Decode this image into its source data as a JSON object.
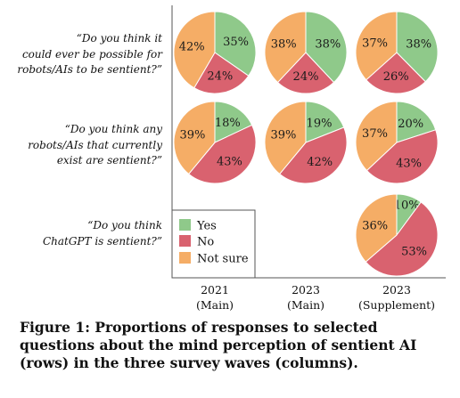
{
  "chart_data": {
    "type": "pie",
    "series": [
      {
        "name": "Yes",
        "color": "#8fc98a"
      },
      {
        "name": "No",
        "color": "#d9626f"
      },
      {
        "name": "Not sure",
        "color": "#f5ad66"
      }
    ],
    "columns": [
      {
        "line1": "2021",
        "line2": "(Main)"
      },
      {
        "line1": "2023",
        "line2": "(Main)"
      },
      {
        "line1": "2023",
        "line2": "(Supplement)"
      }
    ],
    "questions": [
      [
        "“Do you think it",
        "could ever be possible for",
        "robots/AIs to be sentient?”"
      ],
      [
        "“Do you think any",
        "robots/AIs that currently",
        "exist are sentient?”"
      ],
      [
        "“Do you think",
        "ChatGPT is sentient?”"
      ]
    ],
    "pies": [
      {
        "row": 0,
        "col": 0,
        "values": [
          35,
          24,
          42
        ],
        "labels": [
          "35%",
          "24%",
          "42%"
        ]
      },
      {
        "row": 0,
        "col": 1,
        "values": [
          38,
          24,
          38
        ],
        "labels": [
          "38%",
          "24%",
          "38%"
        ]
      },
      {
        "row": 0,
        "col": 2,
        "values": [
          38,
          26,
          37
        ],
        "labels": [
          "38%",
          "26%",
          "37%"
        ]
      },
      {
        "row": 1,
        "col": 0,
        "values": [
          18,
          43,
          39
        ],
        "labels": [
          "18%",
          "43%",
          "39%"
        ]
      },
      {
        "row": 1,
        "col": 1,
        "values": [
          19,
          42,
          39
        ],
        "labels": [
          "19%",
          "42%",
          "39%"
        ]
      },
      {
        "row": 1,
        "col": 2,
        "values": [
          20,
          43,
          37
        ],
        "labels": [
          "20%",
          "43%",
          "37%"
        ]
      },
      {
        "row": 2,
        "col": 2,
        "values": [
          10,
          53,
          36
        ],
        "labels": [
          "10%",
          "53%",
          "36%"
        ]
      }
    ],
    "legend_position": "inside-bottom-left"
  },
  "caption": "Figure 1: Proportions of responses to selected questions about the mind perception of sentient AI (rows) in the three survey waves (columns)."
}
